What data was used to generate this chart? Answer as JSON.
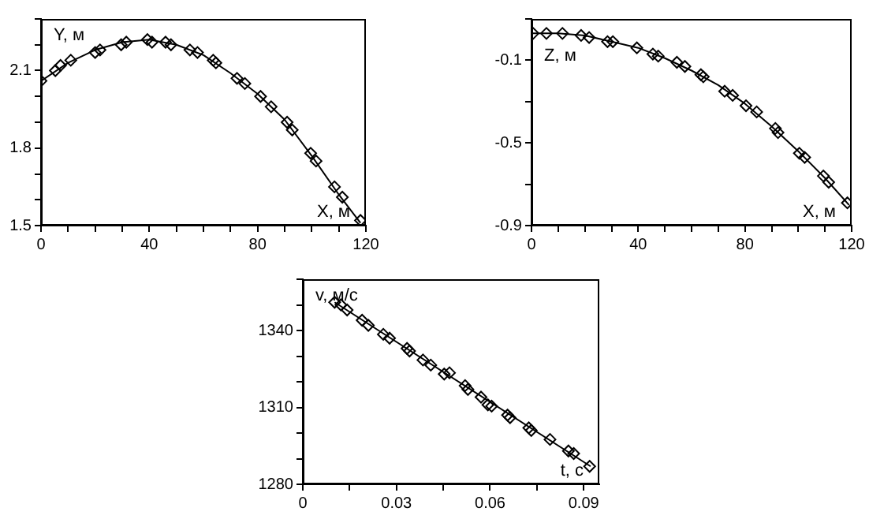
{
  "chart_data": [
    {
      "type": "scatter",
      "xlabel": "X, м",
      "ylabel": "Y, м",
      "grid": false,
      "legend": false,
      "xlim": [
        0,
        120
      ],
      "ylim": [
        1.5,
        2.3
      ],
      "xticks": [
        0,
        {
          "value": 10,
          "label": null
        },
        {
          "value": 20,
          "label": null
        },
        {
          "value": 30,
          "label": null
        },
        40,
        {
          "value": 50,
          "label": null
        },
        {
          "value": 60,
          "label": null
        },
        {
          "value": 70,
          "label": null
        },
        80,
        {
          "value": 90,
          "label": null
        },
        {
          "value": 100,
          "label": null
        },
        {
          "value": 110,
          "label": null
        },
        120
      ],
      "yticks": [
        1.5,
        {
          "value": 1.6,
          "label": null
        },
        {
          "value": 1.7,
          "label": null
        },
        1.8,
        {
          "value": 1.9,
          "label": null
        },
        {
          "value": 2.0,
          "label": null
        },
        2.1,
        {
          "value": 2.2,
          "label": null
        },
        {
          "value": 2.3,
          "label": null
        }
      ],
      "series": [
        {
          "color": "#000000",
          "marker": "diamond",
          "x": [
            0,
            5.3,
            7.2,
            11,
            20,
            21.8,
            29.6,
            31.5,
            39.3,
            41,
            46,
            48,
            55,
            57.8,
            63.6,
            64.6,
            72.4,
            75.3,
            81.1,
            85,
            90.9,
            92.8,
            99.6,
            101.6,
            108.4,
            111.3,
            118
          ],
          "values": [
            2.06,
            2.1,
            2.12,
            2.14,
            2.17,
            2.18,
            2.2,
            2.21,
            2.22,
            2.21,
            2.21,
            2.2,
            2.18,
            2.17,
            2.14,
            2.13,
            2.07,
            2.05,
            2.0,
            1.96,
            1.9,
            1.87,
            1.78,
            1.75,
            1.65,
            1.61,
            1.52
          ]
        },
        {
          "type": "line",
          "marker": "none",
          "color": "#000000",
          "x": [
            0,
            10,
            20,
            30,
            40,
            50,
            60,
            70,
            80,
            90,
            100,
            110,
            118
          ],
          "values": [
            2.06,
            2.13,
            2.18,
            2.21,
            2.22,
            2.2,
            2.16,
            2.09,
            2.01,
            1.91,
            1.77,
            1.62,
            1.51
          ]
        }
      ]
    },
    {
      "type": "scatter",
      "xlabel": "X, м",
      "ylabel": "Z, м",
      "grid": false,
      "legend": false,
      "xlim": [
        0,
        120
      ],
      "ylim": [
        -0.9,
        0.1
      ],
      "xticks": [
        0,
        {
          "value": 10,
          "label": null
        },
        {
          "value": 20,
          "label": null
        },
        {
          "value": 30,
          "label": null
        },
        40,
        {
          "value": 50,
          "label": null
        },
        {
          "value": 60,
          "label": null
        },
        {
          "value": 70,
          "label": null
        },
        80,
        {
          "value": 90,
          "label": null
        },
        {
          "value": 100,
          "label": null
        },
        {
          "value": 110,
          "label": null
        },
        120
      ],
      "yticks": [
        -0.9,
        {
          "value": -0.7,
          "label": null
        },
        -0.5,
        {
          "value": -0.3,
          "label": null
        },
        -0.1,
        {
          "value": 0.1,
          "label": null
        }
      ],
      "series": [
        {
          "color": "#000000",
          "marker": "diamond",
          "x": [
            0.6,
            5.6,
            11.6,
            18.6,
            21.6,
            28.5,
            30.5,
            39.5,
            45.5,
            47.5,
            54.5,
            57.5,
            63.5,
            64.4,
            72.4,
            75.4,
            80.4,
            84.4,
            91.4,
            92.4,
            100.4,
            102.4,
            109.4,
            111.4,
            118.4
          ],
          "values": [
            0.03,
            0.03,
            0.03,
            0.02,
            0.01,
            -0.01,
            -0.01,
            -0.04,
            -0.07,
            -0.08,
            -0.11,
            -0.13,
            -0.17,
            -0.18,
            -0.25,
            -0.27,
            -0.32,
            -0.35,
            -0.43,
            -0.45,
            -0.55,
            -0.57,
            -0.66,
            -0.69,
            -0.79
          ]
        },
        {
          "type": "line",
          "marker": "none",
          "color": "#000000",
          "x": [
            0,
            10,
            20,
            30,
            40,
            50,
            60,
            70,
            80,
            90,
            100,
            110,
            119
          ],
          "values": [
            0.03,
            0.03,
            0.02,
            -0.01,
            -0.04,
            -0.09,
            -0.15,
            -0.22,
            -0.31,
            -0.42,
            -0.54,
            -0.67,
            -0.8
          ]
        }
      ]
    },
    {
      "type": "scatter",
      "xlabel": "t, с",
      "ylabel": "v, м/с",
      "grid": false,
      "legend": false,
      "xlim": [
        0,
        0.095
      ],
      "ylim": [
        1280,
        1360
      ],
      "xticks": [
        0,
        {
          "value": 0.015,
          "label": null
        },
        0.03,
        {
          "value": 0.045,
          "label": null
        },
        0.06,
        {
          "value": 0.075,
          "label": null
        },
        0.09
      ],
      "yticks": [
        1280,
        {
          "value": 1290,
          "label": null
        },
        {
          "value": 1300,
          "label": null
        },
        1310,
        {
          "value": 1320,
          "label": null
        },
        {
          "value": 1330,
          "label": null
        },
        1340,
        {
          "value": 1350,
          "label": null
        },
        {
          "value": 1360,
          "label": null
        }
      ],
      "series": [
        {
          "color": "#000000",
          "marker": "diamond",
          "x": [
            0.0102,
            0.0122,
            0.0142,
            0.019,
            0.021,
            0.0258,
            0.0278,
            0.0334,
            0.0342,
            0.0385,
            0.041,
            0.0453,
            0.047,
            0.052,
            0.0529,
            0.0571,
            0.0593,
            0.0605,
            0.0656,
            0.0664,
            0.0724,
            0.0732,
            0.0792,
            0.0851,
            0.0868,
            0.0919
          ],
          "values": [
            1351,
            1350,
            1348,
            1344,
            1342,
            1338.5,
            1337,
            1333,
            1332,
            1328.5,
            1326.5,
            1323,
            1323.5,
            1318.5,
            1317,
            1314,
            1311,
            1310.5,
            1307,
            1306,
            1302,
            1301,
            1297.5,
            1293,
            1292,
            1287
          ]
        },
        {
          "type": "line",
          "marker": "none",
          "color": "#000000",
          "x": [
            0.0102,
            0.0922
          ],
          "values": [
            1351,
            1287
          ]
        }
      ]
    }
  ]
}
